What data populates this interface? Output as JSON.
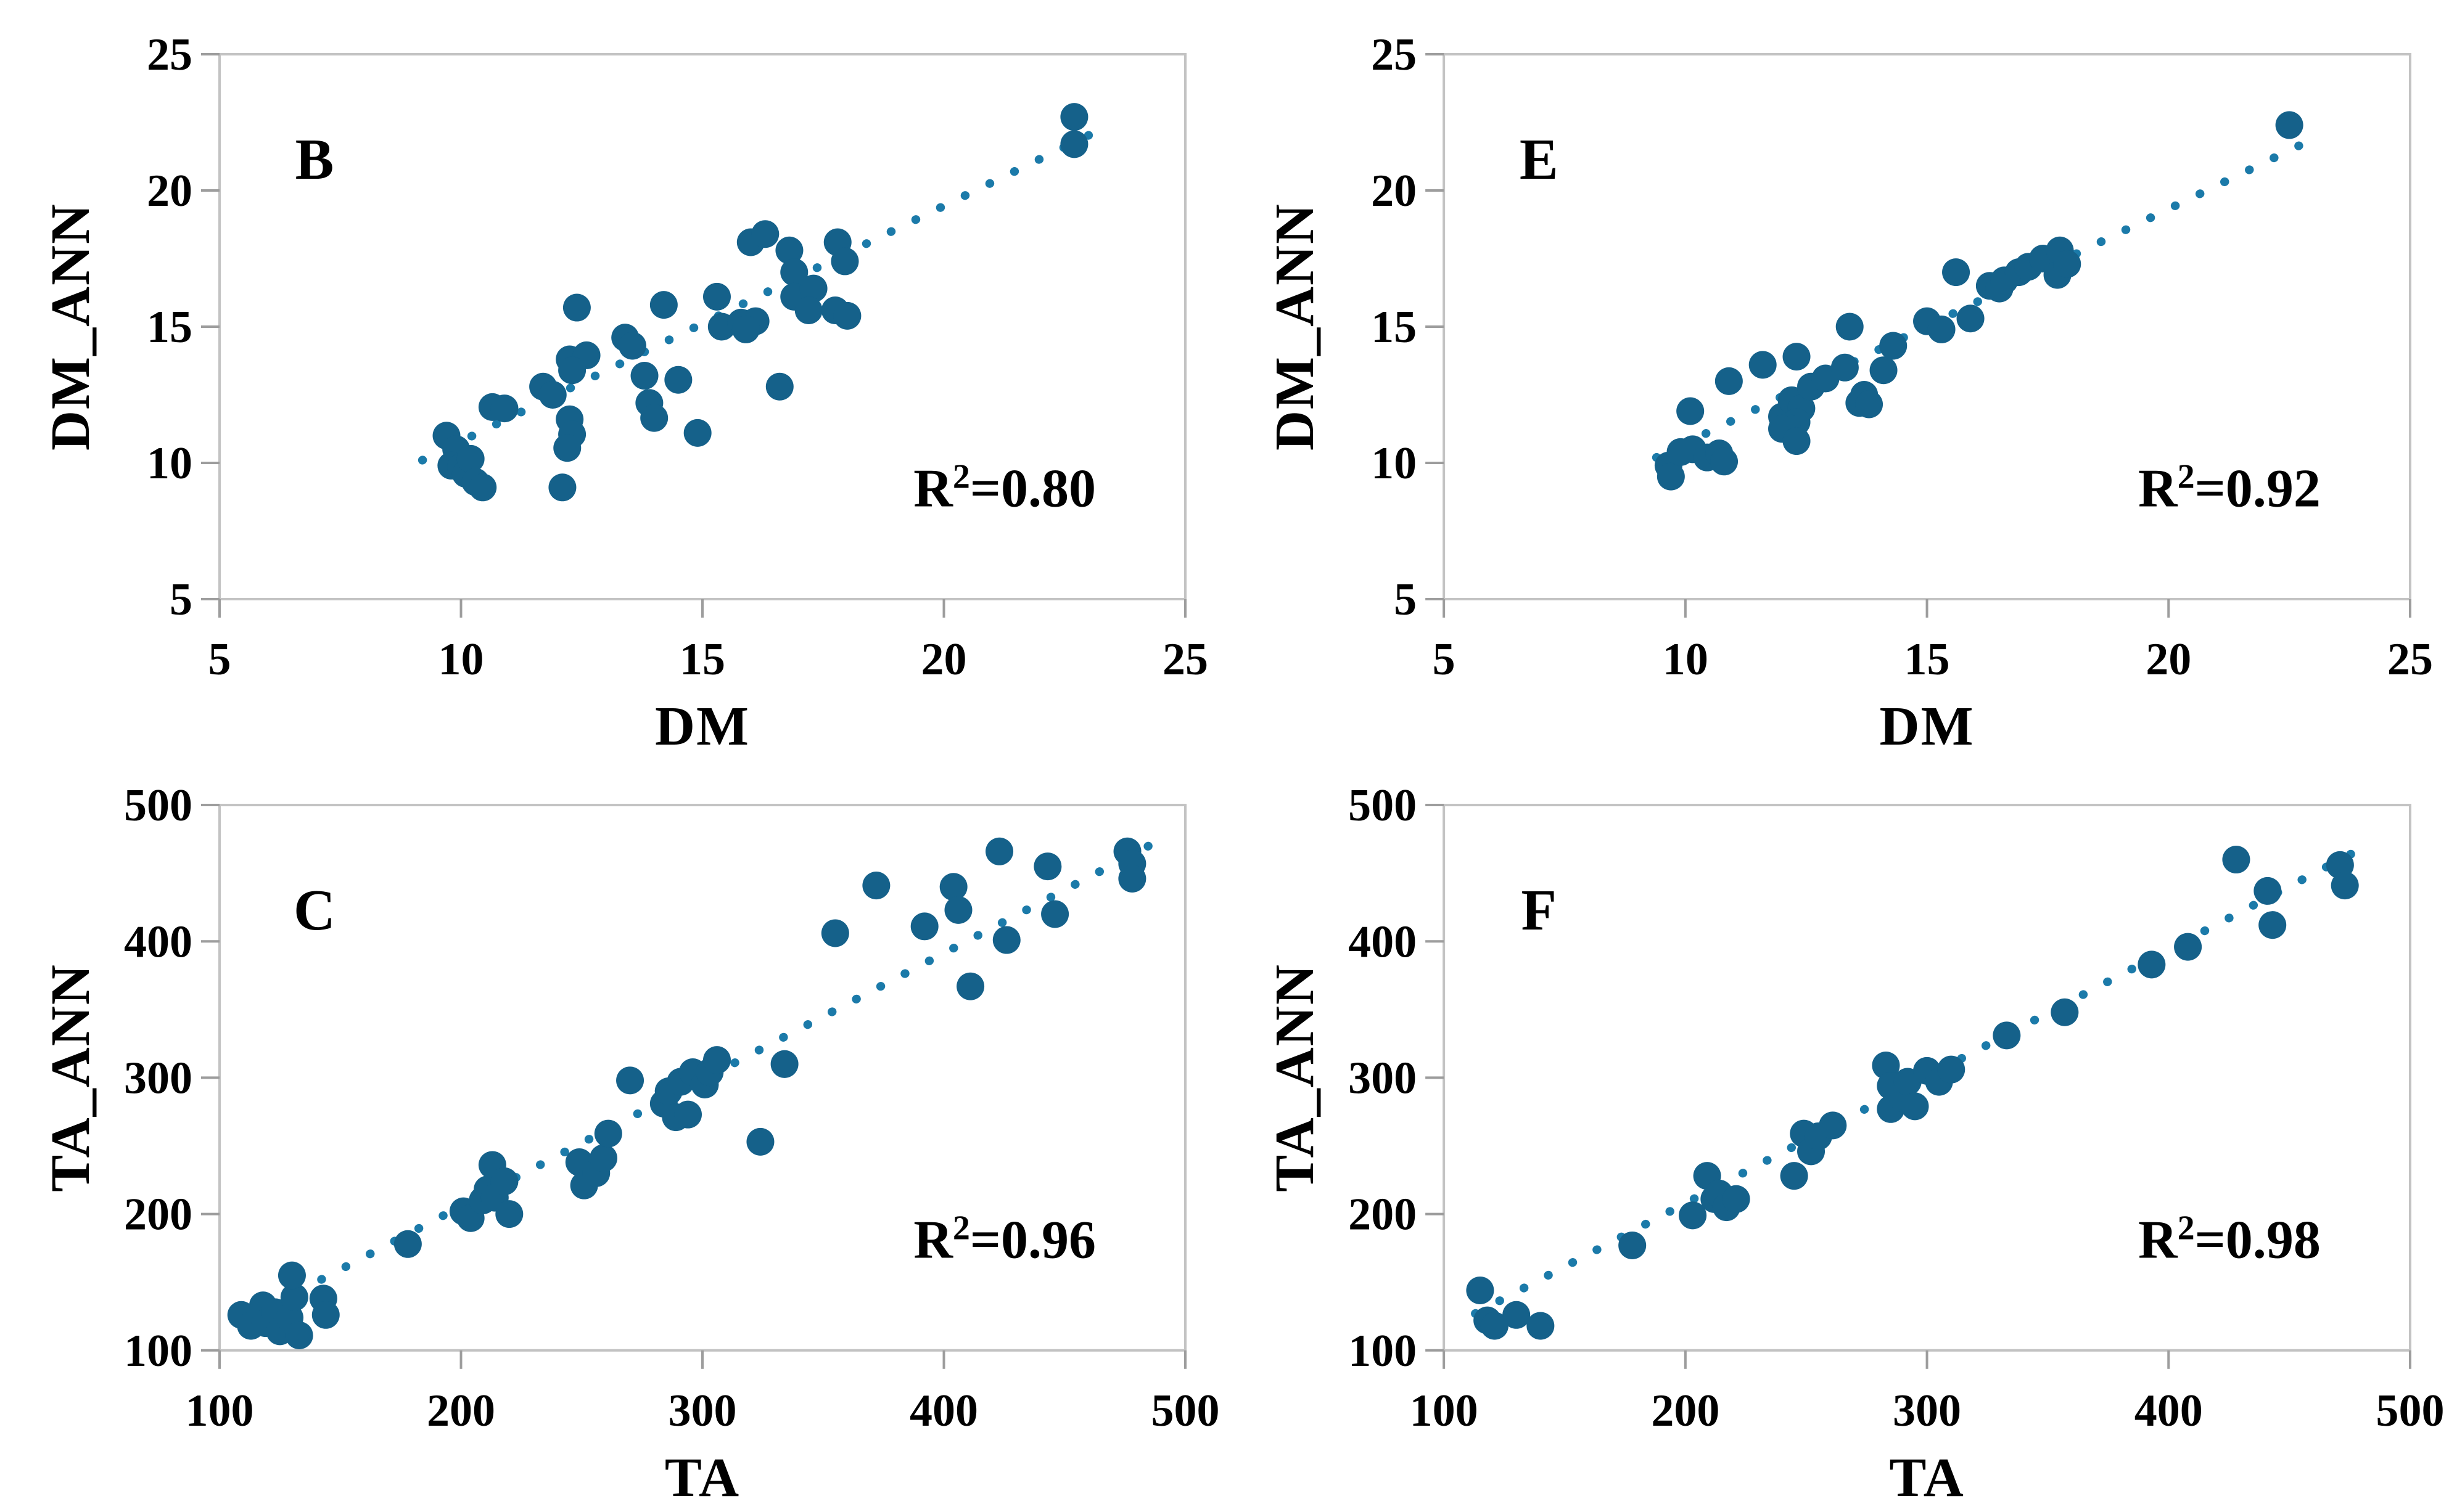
{
  "figure": {
    "background": "#ffffff",
    "marker_color": "#15618a",
    "trend_color": "#1b7aa9",
    "border_color": "#c3c3c3",
    "tick_color": "#9d9d9d",
    "text_color": "#000000"
  },
  "chart_data": [
    {
      "type": "scatter",
      "letter": "B",
      "xlabel": "DM",
      "ylabel": "DM_ANN",
      "r2_base": "R",
      "r2_sup": "2",
      "r2_rest": "=0.80",
      "xlim": [
        5,
        25
      ],
      "ylim": [
        5,
        25
      ],
      "xticks": [
        5,
        10,
        15,
        20,
        25
      ],
      "yticks": [
        5,
        10,
        15,
        20,
        25
      ],
      "grid": false,
      "legend": "none",
      "trendline": {
        "style": "dotted",
        "x1": 9.2,
        "y1": 10.1,
        "x2": 23.2,
        "y2": 22.2
      },
      "points": [
        [
          9.7,
          11.0
        ],
        [
          9.9,
          10.5
        ],
        [
          9.8,
          9.9
        ],
        [
          10.0,
          9.85
        ],
        [
          10.1,
          9.6
        ],
        [
          10.2,
          10.15
        ],
        [
          10.3,
          9.3
        ],
        [
          10.45,
          9.1
        ],
        [
          10.65,
          12.05
        ],
        [
          10.9,
          12.0
        ],
        [
          11.7,
          12.8
        ],
        [
          11.9,
          12.5
        ],
        [
          12.25,
          13.8
        ],
        [
          12.6,
          13.95
        ],
        [
          12.3,
          13.4
        ],
        [
          12.25,
          11.6
        ],
        [
          12.3,
          11.05
        ],
        [
          12.2,
          10.55
        ],
        [
          12.1,
          9.1
        ],
        [
          12.4,
          15.7
        ],
        [
          13.4,
          14.6
        ],
        [
          13.55,
          14.3
        ],
        [
          13.8,
          13.2
        ],
        [
          13.9,
          12.2
        ],
        [
          14.0,
          11.65
        ],
        [
          14.2,
          15.8
        ],
        [
          14.5,
          13.05
        ],
        [
          14.9,
          11.1
        ],
        [
          15.3,
          16.1
        ],
        [
          15.4,
          15.0
        ],
        [
          15.8,
          15.15
        ],
        [
          16.1,
          15.2
        ],
        [
          15.9,
          14.9
        ],
        [
          16.0,
          18.1
        ],
        [
          16.3,
          18.4
        ],
        [
          16.6,
          12.8
        ],
        [
          16.8,
          17.8
        ],
        [
          16.9,
          17.0
        ],
        [
          16.9,
          16.1
        ],
        [
          17.3,
          16.4
        ],
        [
          17.2,
          15.6
        ],
        [
          17.75,
          15.6
        ],
        [
          18.0,
          15.4
        ],
        [
          17.8,
          18.1
        ],
        [
          17.95,
          17.4
        ],
        [
          22.7,
          22.7
        ],
        [
          22.7,
          21.7
        ]
      ]
    },
    {
      "type": "scatter",
      "letter": "E",
      "xlabel": "DM",
      "ylabel": "DM_ANN",
      "r2_base": "R",
      "r2_sup": "2",
      "r2_rest": "=0.92",
      "xlim": [
        5,
        25
      ],
      "ylim": [
        5,
        25
      ],
      "xticks": [
        5,
        10,
        15,
        20,
        25
      ],
      "yticks": [
        5,
        10,
        15,
        20,
        25
      ],
      "grid": false,
      "legend": "none",
      "trendline": {
        "style": "dotted",
        "x1": 9.4,
        "y1": 10.2,
        "x2": 23.0,
        "y2": 21.9
      },
      "points": [
        [
          9.65,
          9.9
        ],
        [
          9.7,
          9.5
        ],
        [
          9.9,
          10.4
        ],
        [
          10.15,
          10.5
        ],
        [
          10.45,
          10.2
        ],
        [
          10.7,
          10.35
        ],
        [
          10.8,
          10.05
        ],
        [
          10.1,
          11.9
        ],
        [
          10.9,
          13.0
        ],
        [
          11.6,
          13.6
        ],
        [
          12.3,
          13.9
        ],
        [
          12.0,
          11.7
        ],
        [
          12.2,
          12.3
        ],
        [
          12.4,
          12.0
        ],
        [
          12.3,
          11.5
        ],
        [
          12.1,
          11.3
        ],
        [
          12.0,
          11.25
        ],
        [
          12.3,
          10.8
        ],
        [
          12.6,
          12.8
        ],
        [
          12.9,
          13.1
        ],
        [
          13.3,
          13.5
        ],
        [
          13.4,
          15.0
        ],
        [
          13.6,
          12.2
        ],
        [
          13.7,
          12.5
        ],
        [
          13.8,
          12.15
        ],
        [
          14.1,
          13.4
        ],
        [
          14.3,
          14.3
        ],
        [
          15.0,
          15.2
        ],
        [
          15.3,
          14.9
        ],
        [
          15.6,
          17.0
        ],
        [
          15.9,
          15.3
        ],
        [
          16.3,
          16.5
        ],
        [
          16.5,
          16.4
        ],
        [
          16.6,
          16.7
        ],
        [
          16.9,
          17.0
        ],
        [
          17.1,
          17.2
        ],
        [
          17.4,
          17.5
        ],
        [
          17.7,
          16.9
        ],
        [
          17.75,
          17.8
        ],
        [
          17.9,
          17.3
        ],
        [
          22.5,
          22.4
        ]
      ]
    },
    {
      "type": "scatter",
      "letter": "C",
      "xlabel": "TA",
      "ylabel": "TA_ANN",
      "r2_base": "R",
      "r2_sup": "2",
      "r2_rest": "=0.96",
      "xlim": [
        100,
        500
      ],
      "ylim": [
        100,
        500
      ],
      "xticks": [
        100,
        200,
        300,
        400,
        500
      ],
      "yticks": [
        100,
        200,
        300,
        400,
        500
      ],
      "grid": false,
      "legend": "none",
      "trendline": {
        "style": "dotted",
        "x1": 112,
        "y1": 124,
        "x2": 488,
        "y2": 473
      },
      "points": [
        [
          109,
          126
        ],
        [
          113,
          118
        ],
        [
          118,
          133
        ],
        [
          119,
          120
        ],
        [
          123,
          128
        ],
        [
          125,
          114
        ],
        [
          129,
          124
        ],
        [
          131,
          139
        ],
        [
          130,
          155
        ],
        [
          133,
          111
        ],
        [
          143,
          138
        ],
        [
          144,
          126
        ],
        [
          178,
          178
        ],
        [
          201,
          202
        ],
        [
          204,
          197
        ],
        [
          209,
          210
        ],
        [
          211,
          218
        ],
        [
          214,
          212
        ],
        [
          213,
          236
        ],
        [
          218,
          224
        ],
        [
          220,
          200
        ],
        [
          249,
          238
        ],
        [
          251,
          221
        ],
        [
          256,
          230
        ],
        [
          259,
          241
        ],
        [
          261,
          259
        ],
        [
          270,
          298
        ],
        [
          284,
          281
        ],
        [
          286,
          290
        ],
        [
          289,
          271
        ],
        [
          294,
          273
        ],
        [
          291,
          297
        ],
        [
          296,
          304
        ],
        [
          301,
          295
        ],
        [
          303,
          304
        ],
        [
          306,
          313
        ],
        [
          334,
          310
        ],
        [
          324,
          253
        ],
        [
          355,
          406
        ],
        [
          372,
          441
        ],
        [
          392,
          411
        ],
        [
          404,
          440
        ],
        [
          406,
          423
        ],
        [
          411,
          367
        ],
        [
          423,
          466
        ],
        [
          426,
          401
        ],
        [
          443,
          455
        ],
        [
          446,
          420
        ],
        [
          476,
          466
        ],
        [
          478,
          457
        ],
        [
          478,
          446
        ]
      ]
    },
    {
      "type": "scatter",
      "letter": "F",
      "xlabel": "TA",
      "ylabel": "TA_ANN",
      "r2_base": "R",
      "r2_sup": "2",
      "r2_rest": "=0.98",
      "xlim": [
        100,
        500
      ],
      "ylim": [
        100,
        500
      ],
      "xticks": [
        100,
        200,
        300,
        400,
        500
      ],
      "yticks": [
        100,
        200,
        300,
        400,
        500
      ],
      "grid": false,
      "legend": "none",
      "trendline": {
        "style": "dotted",
        "x1": 113,
        "y1": 127,
        "x2": 483,
        "y2": 471
      },
      "points": [
        [
          115,
          144
        ],
        [
          118,
          122
        ],
        [
          121,
          118
        ],
        [
          130,
          126
        ],
        [
          140,
          118
        ],
        [
          178,
          177
        ],
        [
          203,
          199
        ],
        [
          209,
          228
        ],
        [
          212,
          211
        ],
        [
          214,
          215
        ],
        [
          217,
          205
        ],
        [
          221,
          211
        ],
        [
          245,
          228
        ],
        [
          249,
          259
        ],
        [
          252,
          246
        ],
        [
          255,
          257
        ],
        [
          261,
          265
        ],
        [
          283,
          309
        ],
        [
          285,
          294
        ],
        [
          285,
          277
        ],
        [
          290,
          285
        ],
        [
          292,
          297
        ],
        [
          295,
          279
        ],
        [
          300,
          305
        ],
        [
          305,
          297
        ],
        [
          310,
          306
        ],
        [
          333,
          331
        ],
        [
          357,
          348
        ],
        [
          393,
          383
        ],
        [
          408,
          396
        ],
        [
          428,
          460
        ],
        [
          441,
          437
        ],
        [
          443,
          412
        ],
        [
          471,
          456
        ],
        [
          473,
          441
        ]
      ]
    }
  ]
}
